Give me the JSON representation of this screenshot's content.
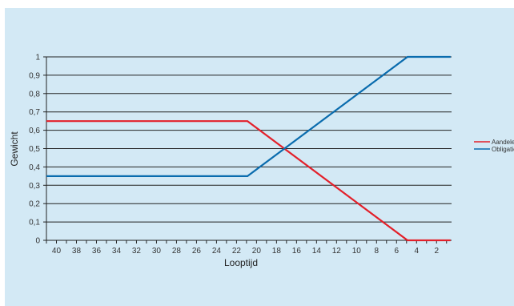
{
  "chart_data": {
    "type": "line",
    "xlabel": "Looptijd",
    "ylabel": "Gewicht",
    "xlim": [
      41,
      0.5
    ],
    "x_ticks": [
      40,
      38,
      36,
      34,
      32,
      30,
      28,
      26,
      24,
      22,
      20,
      18,
      16,
      14,
      12,
      10,
      8,
      6,
      4,
      2
    ],
    "x_tick_labels": [
      "40",
      "38",
      "36",
      "34",
      "32",
      "30",
      "28",
      "26",
      "24",
      "22",
      "20",
      "18",
      "16",
      "14",
      "12",
      "10",
      "8",
      "6",
      "4",
      "2"
    ],
    "ylim": [
      0,
      1
    ],
    "y_ticks": [
      0,
      0.1,
      0.2,
      0.3,
      0.4,
      0.5,
      0.6,
      0.7,
      0.8,
      0.9,
      1
    ],
    "y_tick_labels": [
      "0",
      "0,1",
      "0,2",
      "0,3",
      "0,4",
      "0,5",
      "0,6",
      "0,7",
      "0,8",
      "0,9",
      "1"
    ],
    "grid": "horizontal",
    "legend": "right",
    "series": [
      {
        "name": "Aandelen",
        "color": "#e3202a",
        "x": [
          41,
          20.9,
          4.9,
          0.6
        ],
        "y": [
          0.65,
          0.65,
          0,
          0
        ]
      },
      {
        "name": "Obligaties",
        "color": "#0a6cae",
        "x": [
          41,
          20.9,
          4.9,
          0.6
        ],
        "y": [
          0.35,
          0.35,
          1,
          1
        ]
      }
    ]
  }
}
